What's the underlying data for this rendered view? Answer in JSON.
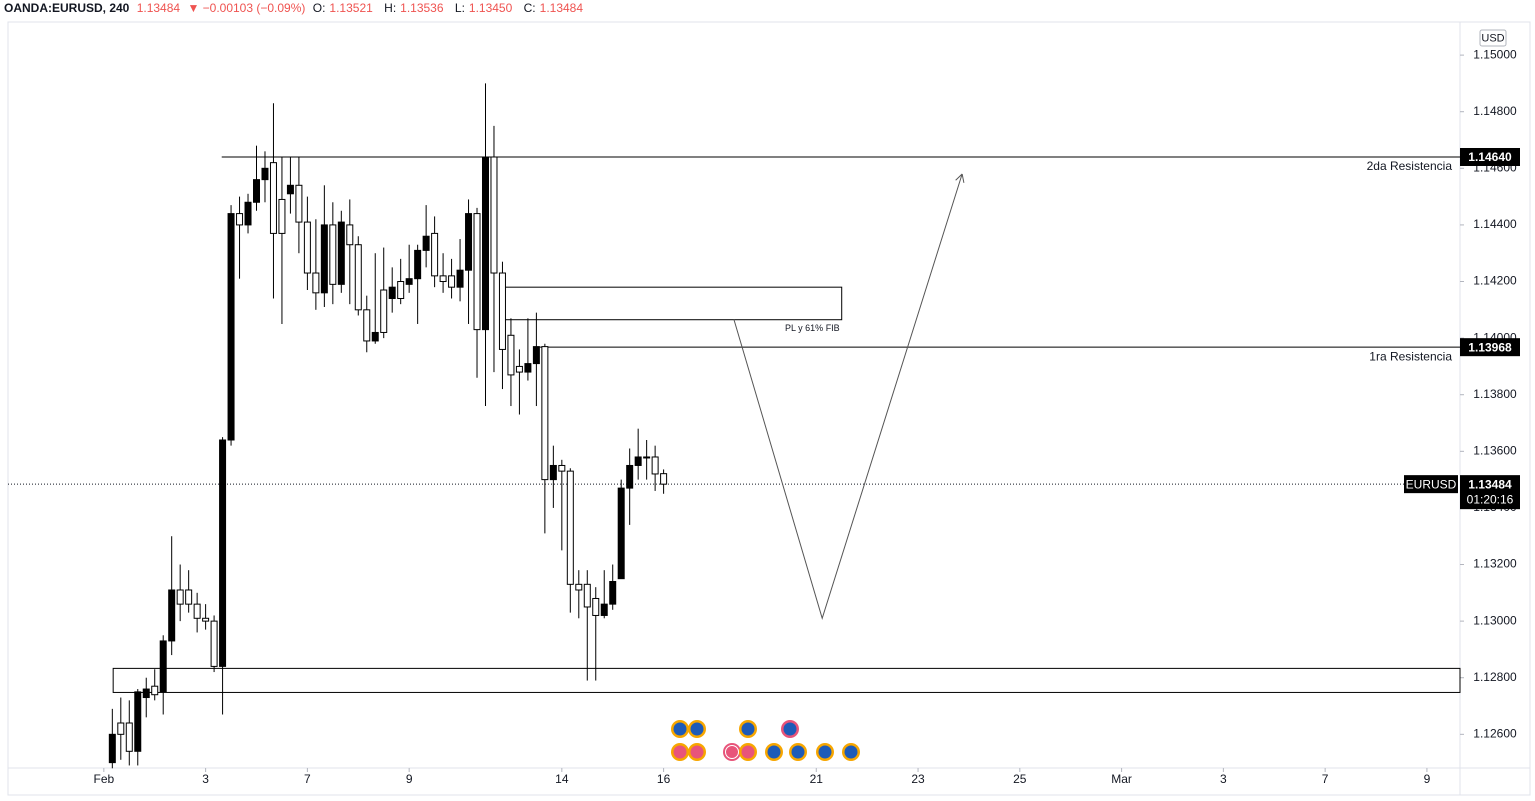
{
  "chart_data": {
    "type": "candlestick",
    "header": {
      "symbol": "OANDA:EURUSD, 240",
      "last": "1.13484",
      "change": "▼ −0.00103 (−0.09%)",
      "o_label": "O:",
      "o": "1.13521",
      "h_label": "H:",
      "h": "1.13536",
      "l_label": "L:",
      "l": "1.13450",
      "c_label": "C:",
      "c": "1.13484"
    },
    "currency": "USD",
    "up_color": "#000000",
    "down_color": "#ffffff",
    "wick_color": "#000000",
    "xlim": [
      -11.3,
      159.9
    ],
    "xticks": [
      {
        "value": 0,
        "label": "Feb"
      },
      {
        "value": 12,
        "label": "3"
      },
      {
        "value": 24,
        "label": "7"
      },
      {
        "value": 36,
        "label": "9"
      },
      {
        "value": 54,
        "label": "14"
      },
      {
        "value": 66,
        "label": "16"
      },
      {
        "value": 84,
        "label": "21"
      },
      {
        "value": 96,
        "label": "23"
      },
      {
        "value": 108,
        "label": "25"
      },
      {
        "value": 120,
        "label": "Mar"
      },
      {
        "value": 132,
        "label": "3"
      },
      {
        "value": 144,
        "label": "7"
      },
      {
        "value": 156,
        "label": "9"
      }
    ],
    "ylim": [
      1.12481,
      1.15117
    ],
    "yticks": [
      {
        "value": 1.126,
        "label": "1.12600"
      },
      {
        "value": 1.128,
        "label": "1.12800"
      },
      {
        "value": 1.13,
        "label": "1.13000"
      },
      {
        "value": 1.132,
        "label": "1.13200"
      },
      {
        "value": 1.134,
        "label": "1.13400"
      },
      {
        "value": 1.136,
        "label": "1.13600"
      },
      {
        "value": 1.138,
        "label": "1.13800"
      },
      {
        "value": 1.14,
        "label": "1.14000"
      },
      {
        "value": 1.142,
        "label": "1.14200"
      },
      {
        "value": 1.144,
        "label": "1.14400"
      },
      {
        "value": 1.146,
        "label": "1.14600"
      },
      {
        "value": 1.148,
        "label": "1.14800"
      },
      {
        "value": 1.15,
        "label": "1.15000"
      }
    ],
    "x": [
      1,
      2,
      3,
      4,
      5,
      6,
      7,
      8,
      9,
      10,
      11,
      12,
      13,
      14,
      15,
      16,
      17,
      18,
      19,
      20,
      21,
      22,
      23,
      24,
      25,
      26,
      27,
      28,
      29,
      30,
      31,
      32,
      33,
      34,
      35,
      36,
      37,
      38,
      39,
      40,
      41,
      42,
      43,
      44,
      45,
      46,
      47,
      48,
      49,
      50,
      51,
      52,
      53,
      54,
      55,
      56,
      57,
      58,
      59,
      60,
      61,
      62,
      63,
      64,
      65,
      66
    ],
    "open": [
      1.125,
      1.1264,
      1.1264,
      1.1254,
      1.1273,
      1.1277,
      1.1275,
      1.1293,
      1.1311,
      1.1311,
      1.1306,
      1.1301,
      1.13,
      1.1284,
      1.1364,
      1.1444,
      1.144,
      1.1448,
      1.1456,
      1.1462,
      1.1449,
      1.1451,
      1.1454,
      1.1441,
      1.1423,
      1.1416,
      1.144,
      1.1419,
      1.144,
      1.1433,
      1.141,
      1.1399,
      1.1417,
      1.1414,
      1.142,
      1.1419,
      1.1421,
      1.1431,
      1.1437,
      1.1422,
      1.1422,
      1.1418,
      1.1424,
      1.1444,
      1.1403,
      1.1464,
      1.1423,
      1.1401,
      1.139,
      1.1388,
      1.1391,
      1.1397,
      1.135,
      1.1355,
      1.1353,
      1.1313,
      1.1313,
      1.1308,
      1.1302,
      1.1306,
      1.1315,
      1.1347,
      1.1355,
      1.1358,
      1.1358,
      1.13521
    ],
    "high": [
      1.1269,
      1.1273,
      1.1272,
      1.1276,
      1.128,
      1.1283,
      1.1295,
      1.133,
      1.132,
      1.1318,
      1.131,
      1.1306,
      1.1302,
      1.1365,
      1.1447,
      1.145,
      1.1451,
      1.1468,
      1.1466,
      1.1483,
      1.1464,
      1.1464,
      1.1464,
      1.145,
      1.1442,
      1.1454,
      1.1448,
      1.1445,
      1.1449,
      1.1436,
      1.1415,
      1.143,
      1.1432,
      1.1425,
      1.1428,
      1.1433,
      1.1433,
      1.1447,
      1.1443,
      1.143,
      1.1428,
      1.1435,
      1.1449,
      1.1446,
      1.149,
      1.1475,
      1.1427,
      1.1407,
      1.1396,
      1.1407,
      1.1409,
      1.1398,
      1.1362,
      1.1357,
      1.1354,
      1.1318,
      1.1318,
      1.1312,
      1.1318,
      1.132,
      1.135,
      1.1361,
      1.1368,
      1.1364,
      1.1362,
      1.13536
    ],
    "low": [
      1.1248,
      1.1251,
      1.1249,
      1.1249,
      1.1266,
      1.1272,
      1.1267,
      1.1288,
      1.13,
      1.1303,
      1.1296,
      1.1297,
      1.1282,
      1.1267,
      1.1362,
      1.1421,
      1.1437,
      1.1445,
      1.1448,
      1.1414,
      1.1405,
      1.1444,
      1.143,
      1.1417,
      1.141,
      1.1411,
      1.1412,
      1.1416,
      1.1412,
      1.1408,
      1.1395,
      1.1398,
      1.14,
      1.1409,
      1.1412,
      1.1416,
      1.1405,
      1.1425,
      1.1418,
      1.1416,
      1.1414,
      1.1413,
      1.1405,
      1.1386,
      1.1376,
      1.1388,
      1.1382,
      1.1376,
      1.1373,
      1.1385,
      1.1376,
      1.1331,
      1.134,
      1.1325,
      1.1303,
      1.1301,
      1.1279,
      1.1279,
      1.1301,
      1.1304,
      1.1315,
      1.1334,
      1.135,
      1.135,
      1.1346,
      1.1345
    ],
    "close": [
      1.126,
      1.126,
      1.1254,
      1.1275,
      1.1276,
      1.1274,
      1.1293,
      1.1311,
      1.1306,
      1.1306,
      1.1301,
      1.13,
      1.1284,
      1.1364,
      1.1444,
      1.144,
      1.1448,
      1.1456,
      1.146,
      1.1437,
      1.1437,
      1.1454,
      1.1441,
      1.1423,
      1.1416,
      1.144,
      1.1419,
      1.1441,
      1.1433,
      1.141,
      1.1399,
      1.1402,
      1.1402,
      1.1418,
      1.1414,
      1.1421,
      1.1431,
      1.1436,
      1.1422,
      1.142,
      1.1418,
      1.1424,
      1.1444,
      1.1403,
      1.1464,
      1.1423,
      1.1396,
      1.1387,
      1.1388,
      1.1391,
      1.1397,
      1.135,
      1.1355,
      1.1353,
      1.1313,
      1.1311,
      1.1305,
      1.1302,
      1.1306,
      1.1314,
      1.1347,
      1.1355,
      1.1358,
      1.1358,
      1.1352,
      1.13484
    ],
    "levels": [
      {
        "name": "2da Resistencia",
        "price": 1.1464,
        "label": "1.14640",
        "x_start": 13.9
      },
      {
        "name": "1ra Resistencia",
        "price": 1.13968,
        "label": "1.13968",
        "x_start": 51.4
      }
    ],
    "current_price": {
      "symbol": "EURUSD",
      "price": 1.13484,
      "label": "1.13484",
      "countdown": "01:20:16"
    },
    "zones": [
      {
        "label": "PL y 61% FIB",
        "top": 1.1418,
        "bottom": 1.14065,
        "x_start": 46.8,
        "x_end": 87
      },
      {
        "top": 1.12833,
        "bottom": 1.12748,
        "x_start": 1.1,
        "x_end": 159.9
      }
    ],
    "arrow": {
      "x": [
        74.3,
        84.7,
        101.2
      ],
      "y": [
        1.14065,
        1.1301,
        1.1458
      ]
    }
  }
}
